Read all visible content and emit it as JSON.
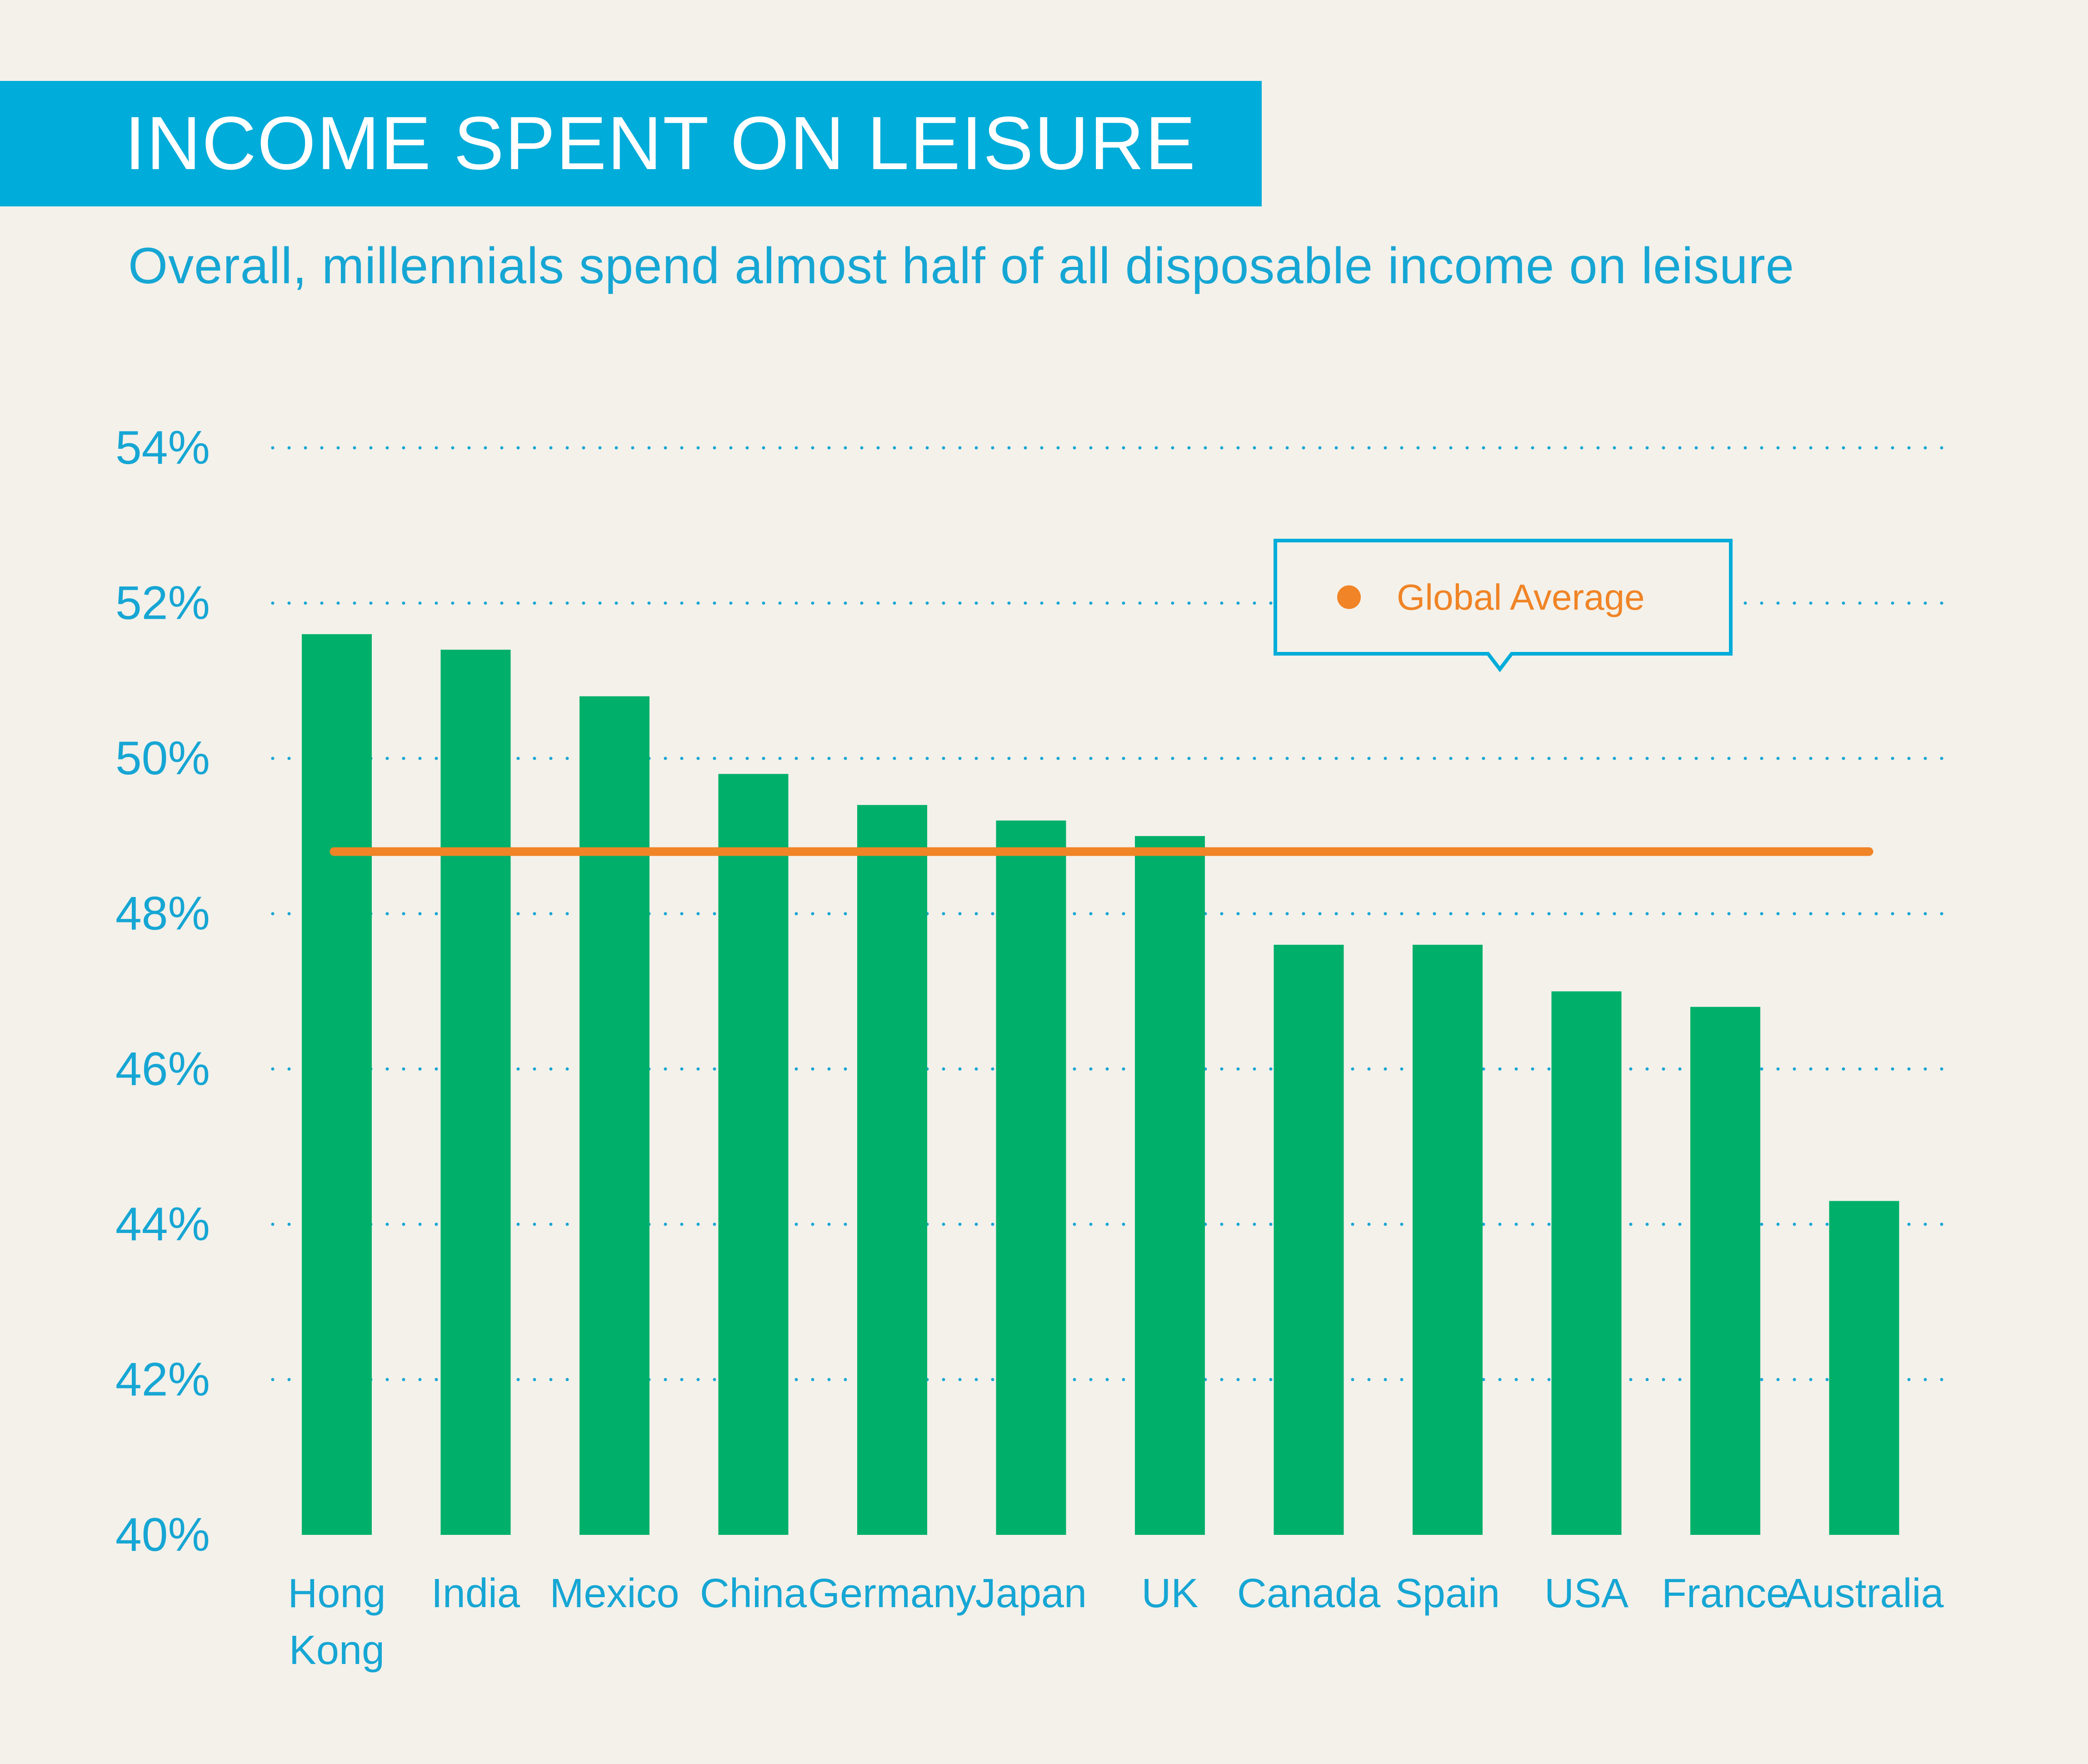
{
  "header": {
    "title": "INCOME SPENT ON LEISURE",
    "subtitle": "Overall, millennials spend almost half of all disposable income on leisure"
  },
  "colors": {
    "background": "#f4f1ea",
    "banner": "#00acd9",
    "accent_text": "#16a6d4",
    "bar": "#00b06a",
    "average_line": "#f08426",
    "gridline": "#16a6d4"
  },
  "legend": {
    "label": "Global Average",
    "placement": "top-right"
  },
  "chart_data": {
    "type": "bar",
    "title": "INCOME SPENT ON LEISURE",
    "subtitle": "Overall, millennials spend almost half of all disposable income on leisure",
    "categories": [
      [
        "Hong",
        "Kong"
      ],
      [
        "India"
      ],
      [
        "Mexico"
      ],
      [
        "China"
      ],
      [
        "Germany"
      ],
      [
        "Japan"
      ],
      [
        "UK"
      ],
      [
        "Canada"
      ],
      [
        "Spain"
      ],
      [
        "USA"
      ],
      [
        "France"
      ],
      [
        "Australia"
      ]
    ],
    "values": [
      51.6,
      51.4,
      50.8,
      49.8,
      49.4,
      49.2,
      49.0,
      47.6,
      47.6,
      47.0,
      46.8,
      44.3
    ],
    "average": {
      "name": "Global Average",
      "value": 48.8
    },
    "ylim": [
      40,
      54
    ],
    "yticks": [
      40,
      42,
      44,
      46,
      48,
      50,
      52,
      54
    ],
    "ytick_labels": [
      "40%",
      "42%",
      "44%",
      "46%",
      "48%",
      "50%",
      "52%",
      "54%"
    ],
    "grid": "dotted-horizontal",
    "xlabel": "",
    "ylabel": ""
  }
}
